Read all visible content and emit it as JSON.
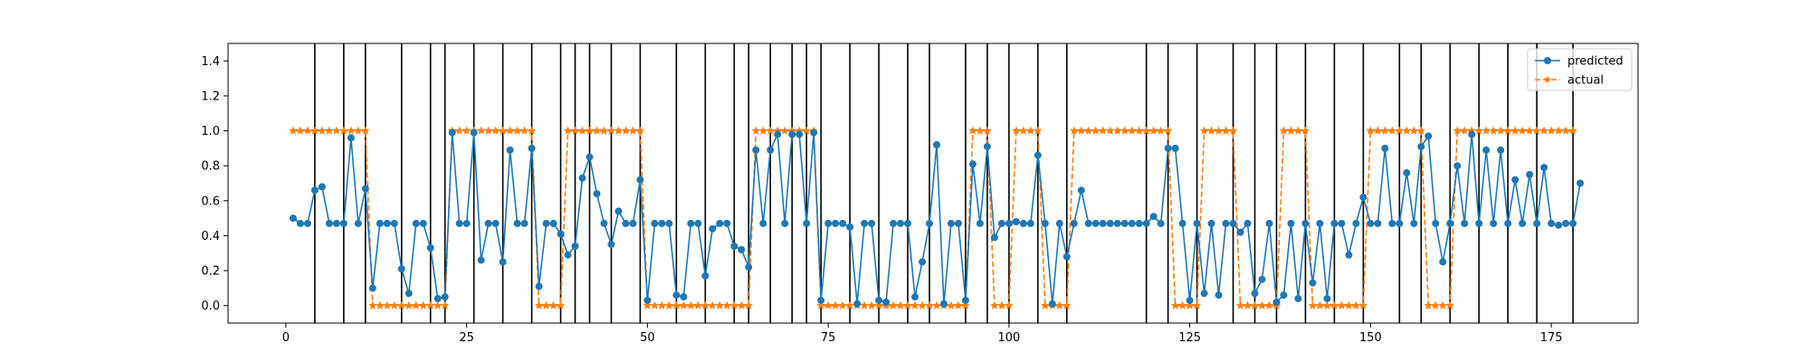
{
  "chart_data": {
    "type": "line",
    "xlim": [
      -8,
      187
    ],
    "ylim": [
      -0.1,
      1.5
    ],
    "grid": false,
    "legend_position": "top-right",
    "x_ticks": [
      0,
      25,
      50,
      75,
      100,
      125,
      150,
      175
    ],
    "y_ticks": [
      0.0,
      0.2,
      0.4,
      0.6,
      0.8,
      1.0,
      1.2,
      1.4
    ],
    "x_tick_labels": [
      "0",
      "25",
      "50",
      "75",
      "100",
      "125",
      "150",
      "175"
    ],
    "y_tick_labels": [
      "0.0",
      "0.2",
      "0.4",
      "0.6",
      "0.8",
      "1.0",
      "1.2",
      "1.4"
    ],
    "vertical_lines": [
      4,
      8,
      11,
      16,
      20,
      22,
      26,
      30,
      34,
      38,
      40,
      42,
      45,
      49,
      54,
      58,
      62,
      64,
      67,
      70,
      72,
      74,
      78,
      82,
      86,
      89,
      94,
      97,
      100,
      104,
      108,
      119,
      122,
      126,
      131,
      134,
      137,
      141,
      145,
      149,
      154,
      157,
      161,
      165,
      169,
      173,
      178
    ],
    "vline_color": "#000000",
    "series": [
      {
        "name": "predicted",
        "color": "#1f77b4",
        "marker": "circle",
        "linestyle": "solid",
        "x_start": 1,
        "values": [
          0.5,
          0.47,
          0.47,
          0.66,
          0.68,
          0.47,
          0.47,
          0.47,
          0.96,
          0.47,
          0.67,
          0.1,
          0.47,
          0.47,
          0.47,
          0.21,
          0.07,
          0.47,
          0.47,
          0.33,
          0.04,
          0.05,
          0.99,
          0.47,
          0.47,
          0.99,
          0.26,
          0.47,
          0.47,
          0.25,
          0.89,
          0.47,
          0.47,
          0.9,
          0.11,
          0.47,
          0.47,
          0.41,
          0.29,
          0.34,
          0.73,
          0.85,
          0.64,
          0.47,
          0.35,
          0.54,
          0.47,
          0.47,
          0.72,
          0.03,
          0.47,
          0.47,
          0.47,
          0.06,
          0.05,
          0.47,
          0.47,
          0.17,
          0.44,
          0.47,
          0.47,
          0.34,
          0.32,
          0.22,
          0.89,
          0.47,
          0.89,
          0.98,
          0.47,
          0.98,
          0.98,
          0.47,
          0.99,
          0.03,
          0.47,
          0.47,
          0.47,
          0.45,
          0.01,
          0.47,
          0.47,
          0.03,
          0.02,
          0.47,
          0.47,
          0.47,
          0.05,
          0.25,
          0.47,
          0.92,
          0.01,
          0.47,
          0.47,
          0.03,
          0.81,
          0.47,
          0.91,
          0.39,
          0.47,
          0.47,
          0.48,
          0.47,
          0.47,
          0.86,
          0.47,
          0.01,
          0.47,
          0.28,
          0.47,
          0.66,
          0.47,
          0.47,
          0.47,
          0.47,
          0.47,
          0.47,
          0.47,
          0.47,
          0.47,
          0.51,
          0.47,
          0.9,
          0.9,
          0.47,
          0.03,
          0.47,
          0.07,
          0.47,
          0.06,
          0.47,
          0.47,
          0.42,
          0.47,
          0.07,
          0.15,
          0.47,
          0.02,
          0.06,
          0.47,
          0.04,
          0.47,
          0.13,
          0.47,
          0.04,
          0.47,
          0.47,
          0.29,
          0.47,
          0.62,
          0.47,
          0.47,
          0.9,
          0.47,
          0.47,
          0.76,
          0.47,
          0.91,
          0.97,
          0.47,
          0.25,
          0.47,
          0.8,
          0.47,
          0.98,
          0.47,
          0.89,
          0.47,
          0.89,
          0.47,
          0.72,
          0.47,
          0.75,
          0.47,
          0.79,
          0.47,
          0.46,
          0.47,
          0.47,
          0.7
        ]
      },
      {
        "name": "actual",
        "color": "#ff7f0e",
        "marker": "star",
        "linestyle": "dashed",
        "x_start": 1,
        "segments": [
          {
            "from": 1,
            "to": 11,
            "value": 1
          },
          {
            "from": 12,
            "to": 22,
            "value": 0
          },
          {
            "from": 23,
            "to": 34,
            "value": 1
          },
          {
            "from": 35,
            "to": 38,
            "value": 0
          },
          {
            "from": 39,
            "to": 49,
            "value": 1
          },
          {
            "from": 50,
            "to": 64,
            "value": 0
          },
          {
            "from": 65,
            "to": 73,
            "value": 1
          },
          {
            "from": 74,
            "to": 94,
            "value": 0
          },
          {
            "from": 95,
            "to": 97,
            "value": 1
          },
          {
            "from": 98,
            "to": 100,
            "value": 0
          },
          {
            "from": 101,
            "to": 104,
            "value": 1
          },
          {
            "from": 105,
            "to": 108,
            "value": 0
          },
          {
            "from": 109,
            "to": 122,
            "value": 1
          },
          {
            "from": 123,
            "to": 126,
            "value": 0
          },
          {
            "from": 127,
            "to": 131,
            "value": 1
          },
          {
            "from": 132,
            "to": 137,
            "value": 0
          },
          {
            "from": 138,
            "to": 141,
            "value": 1
          },
          {
            "from": 142,
            "to": 149,
            "value": 0
          },
          {
            "from": 150,
            "to": 157,
            "value": 1
          },
          {
            "from": 158,
            "to": 161,
            "value": 0
          },
          {
            "from": 162,
            "to": 178,
            "value": 1
          }
        ]
      }
    ]
  }
}
